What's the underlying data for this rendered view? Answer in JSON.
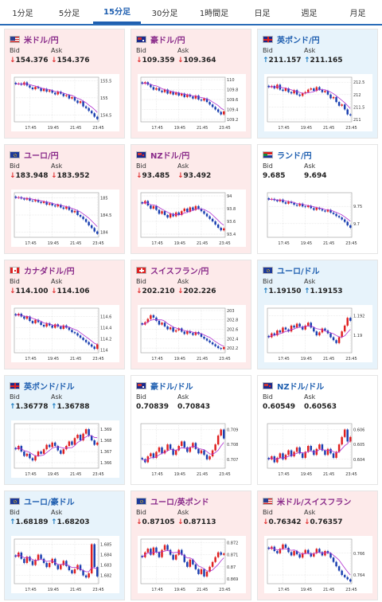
{
  "tabs": [
    {
      "label": "1分足",
      "active": false
    },
    {
      "label": "5分足",
      "active": false
    },
    {
      "label": "15分足",
      "active": true
    },
    {
      "label": "30分足",
      "active": false
    },
    {
      "label": "1時間足",
      "active": false
    },
    {
      "label": "日足",
      "active": false
    },
    {
      "label": "週足",
      "active": false
    },
    {
      "label": "月足",
      "active": false
    }
  ],
  "labels": {
    "bid": "Bid",
    "ask": "Ask"
  },
  "colors": {
    "down_bg": "#fdeaea",
    "up_bg": "#e7f3fb",
    "down_arrow": "#e03030",
    "up_arrow": "#1a7ac0",
    "candle_up": "#e02020",
    "candle_down": "#1a3fb0",
    "ma": "#b030d0"
  },
  "pairs": [
    {
      "title": "米ドル/円",
      "flag": "us-jp",
      "trend": "down",
      "bid": "154.376",
      "ask": "154.376",
      "bid_dir": "down",
      "ask_dir": "down",
      "chart_data": {
        "type": "candlestick",
        "x_ticks": [
          "17:45",
          "19:45",
          "21:45",
          "23:45"
        ],
        "y_ticks": [
          "155.5",
          "155",
          "154.5"
        ],
        "ylim": [
          154.3,
          155.6
        ],
        "close": [
          155.4,
          155.42,
          155.38,
          155.45,
          155.36,
          155.3,
          155.25,
          155.32,
          155.28,
          155.2,
          155.26,
          155.18,
          155.22,
          155.15,
          155.1,
          155.18,
          155.12,
          155.05,
          155.08,
          154.98,
          155.02,
          154.92,
          154.85,
          154.9,
          154.75,
          154.7,
          154.62,
          154.55,
          154.45,
          154.38
        ]
      }
    },
    {
      "title": "豪ドル/円",
      "flag": "au-jp",
      "trend": "down",
      "bid": "109.359",
      "ask": "109.364",
      "bid_dir": "down",
      "ask_dir": "down",
      "chart_data": {
        "type": "candlestick",
        "x_ticks": [
          "17:45",
          "19:45",
          "21:45",
          "23:45"
        ],
        "y_ticks": [
          "110",
          "109.8",
          "109.6",
          "109.4",
          "109.2"
        ],
        "ylim": [
          109.15,
          110.05
        ],
        "close": [
          109.92,
          109.95,
          109.9,
          109.85,
          109.8,
          109.83,
          109.78,
          109.75,
          109.8,
          109.72,
          109.76,
          109.7,
          109.74,
          109.68,
          109.72,
          109.65,
          109.7,
          109.66,
          109.62,
          109.68,
          109.6,
          109.58,
          109.62,
          109.55,
          109.5,
          109.45,
          109.4,
          109.35,
          109.3,
          109.36
        ]
      }
    },
    {
      "title": "英ポンド/円",
      "flag": "gb-jp",
      "trend": "up",
      "bid": "211.157",
      "ask": "211.165",
      "bid_dir": "up",
      "ask_dir": "up",
      "chart_data": {
        "type": "candlestick",
        "x_ticks": [
          "17:45",
          "19:45",
          "21:45",
          "23:45"
        ],
        "y_ticks": [
          "212.5",
          "212",
          "211.5",
          "211"
        ],
        "ylim": [
          210.9,
          212.7
        ],
        "close": [
          212.3,
          212.35,
          212.25,
          212.4,
          212.2,
          212.15,
          212.25,
          212.1,
          212.05,
          212.18,
          212.0,
          211.95,
          212.05,
          212.1,
          212.2,
          212.25,
          212.15,
          212.3,
          212.2,
          212.1,
          212.15,
          212.0,
          211.85,
          211.9,
          211.7,
          211.55,
          211.6,
          211.4,
          211.2,
          211.16
        ]
      }
    },
    {
      "title": "ユーロ/円",
      "flag": "eu-jp",
      "trend": "down",
      "bid": "183.948",
      "ask": "183.952",
      "bid_dir": "down",
      "ask_dir": "down",
      "chart_data": {
        "type": "candlestick",
        "x_ticks": [
          "17:45",
          "19:45",
          "21:45",
          "23:45"
        ],
        "y_ticks": [
          "185",
          "184.5",
          "184"
        ],
        "ylim": [
          183.85,
          185.15
        ],
        "close": [
          185.0,
          185.02,
          184.98,
          184.95,
          184.99,
          184.92,
          184.9,
          184.94,
          184.88,
          184.85,
          184.89,
          184.8,
          184.84,
          184.78,
          184.75,
          184.8,
          184.72,
          184.68,
          184.74,
          184.65,
          184.58,
          184.62,
          184.5,
          184.45,
          184.38,
          184.3,
          184.2,
          184.12,
          184.02,
          183.95
        ]
      }
    },
    {
      "title": "NZドル/円",
      "flag": "nz-jp",
      "trend": "down",
      "bid": "93.485",
      "ask": "93.492",
      "bid_dir": "down",
      "ask_dir": "down",
      "chart_data": {
        "type": "candlestick",
        "x_ticks": [
          "17:45",
          "19:45",
          "21:45",
          "23:45"
        ],
        "y_ticks": [
          "94",
          "93.8",
          "93.6",
          "93.4"
        ],
        "ylim": [
          93.35,
          94.05
        ],
        "close": [
          93.88,
          93.92,
          93.85,
          93.8,
          93.84,
          93.78,
          93.72,
          93.76,
          93.7,
          93.66,
          93.72,
          93.68,
          93.74,
          93.7,
          93.76,
          93.8,
          93.75,
          93.82,
          93.78,
          93.84,
          93.8,
          93.76,
          93.72,
          93.68,
          93.64,
          93.6,
          93.55,
          93.5,
          93.46,
          93.49
        ]
      }
    },
    {
      "title": "ランド/円",
      "flag": "za-jp",
      "trend": "flat",
      "bid": "9.685",
      "ask": "9.694",
      "bid_dir": "none",
      "ask_dir": "none",
      "chart_data": {
        "type": "candlestick",
        "x_ticks": [
          "17:45",
          "19:45",
          "21:45",
          "23:45"
        ],
        "y_ticks": [
          "9.75",
          "9.7"
        ],
        "ylim": [
          9.66,
          9.79
        ],
        "close": [
          9.77,
          9.772,
          9.768,
          9.765,
          9.77,
          9.762,
          9.758,
          9.764,
          9.76,
          9.755,
          9.752,
          9.758,
          9.75,
          9.748,
          9.752,
          9.745,
          9.74,
          9.746,
          9.742,
          9.738,
          9.735,
          9.74,
          9.732,
          9.728,
          9.722,
          9.718,
          9.712,
          9.705,
          9.695,
          9.688
        ]
      }
    },
    {
      "title": "カナダドル/円",
      "flag": "ca-jp",
      "trend": "down",
      "bid": "114.100",
      "ask": "114.106",
      "bid_dir": "down",
      "ask_dir": "down",
      "chart_data": {
        "type": "candlestick",
        "x_ticks": [
          "17:45",
          "19:45",
          "21:45",
          "23:45"
        ],
        "y_ticks": [
          "114.6",
          "114.4",
          "114.2",
          "114"
        ],
        "ylim": [
          113.95,
          114.75
        ],
        "close": [
          114.62,
          114.65,
          114.6,
          114.56,
          114.6,
          114.52,
          114.48,
          114.54,
          114.5,
          114.45,
          114.42,
          114.48,
          114.44,
          114.4,
          114.46,
          114.42,
          114.38,
          114.44,
          114.4,
          114.36,
          114.32,
          114.3,
          114.26,
          114.22,
          114.18,
          114.14,
          114.1,
          114.06,
          114.02,
          114.1
        ]
      }
    },
    {
      "title": "スイスフラン/円",
      "flag": "ch-jp",
      "trend": "down",
      "bid": "202.210",
      "ask": "202.226",
      "bid_dir": "down",
      "ask_dir": "down",
      "chart_data": {
        "type": "candlestick",
        "x_ticks": [
          "17:45",
          "19:45",
          "21:45",
          "23:45"
        ],
        "y_ticks": [
          "203",
          "202.8",
          "202.6",
          "202.4",
          "202.2"
        ],
        "ylim": [
          202.1,
          203.05
        ],
        "close": [
          202.7,
          202.75,
          202.82,
          202.9,
          202.85,
          202.78,
          202.7,
          202.74,
          202.66,
          202.6,
          202.64,
          202.55,
          202.58,
          202.62,
          202.55,
          202.5,
          202.56,
          202.52,
          202.48,
          202.54,
          202.5,
          202.44,
          202.4,
          202.36,
          202.32,
          202.28,
          202.24,
          202.2,
          202.18,
          202.22
        ]
      }
    },
    {
      "title": "ユーロ/ドル",
      "flag": "eu-us",
      "trend": "up",
      "bid": "1.19150",
      "ask": "1.19153",
      "bid_dir": "up",
      "ask_dir": "up",
      "chart_data": {
        "type": "candlestick",
        "x_ticks": [
          "17:45",
          "19:45",
          "21:45",
          "23:45"
        ],
        "y_ticks": [
          "1.192",
          "1.19"
        ],
        "ylim": [
          1.1882,
          1.1928
        ],
        "close": [
          1.1898,
          1.1902,
          1.19,
          1.1905,
          1.1903,
          1.1908,
          1.1906,
          1.1904,
          1.191,
          1.1908,
          1.1912,
          1.1909,
          1.1906,
          1.191,
          1.1913,
          1.1908,
          1.1904,
          1.19,
          1.1903,
          1.1907,
          1.1905,
          1.1902,
          1.1898,
          1.1895,
          1.1892,
          1.1898,
          1.1904,
          1.191,
          1.1918,
          1.1915
        ]
      }
    },
    {
      "title": "英ポンド/ドル",
      "flag": "gb-us",
      "trend": "up",
      "bid": "1.36778",
      "ask": "1.36788",
      "bid_dir": "up",
      "ask_dir": "up",
      "chart_data": {
        "type": "candlestick",
        "x_ticks": [
          "17:45",
          "19:45",
          "21:45",
          "23:45"
        ],
        "y_ticks": [
          "1.369",
          "1.368",
          "1.367",
          "1.366"
        ],
        "ylim": [
          1.3655,
          1.3695
        ],
        "close": [
          1.3672,
          1.3675,
          1.367,
          1.3666,
          1.3668,
          1.3664,
          1.3662,
          1.3666,
          1.367,
          1.3668,
          1.3672,
          1.3676,
          1.3674,
          1.3678,
          1.3675,
          1.3671,
          1.3668,
          1.3672,
          1.3675,
          1.3679,
          1.3676,
          1.3682,
          1.3685,
          1.368,
          1.3686,
          1.369,
          1.3684,
          1.368,
          1.3676,
          1.3678
        ]
      }
    },
    {
      "title": "豪ドル/ドル",
      "flag": "au-us",
      "trend": "flat",
      "bid": "0.70839",
      "ask": "0.70843",
      "bid_dir": "none",
      "ask_dir": "none",
      "chart_data": {
        "type": "candlestick",
        "x_ticks": [
          "17:45",
          "19:45",
          "21:45",
          "23:45"
        ],
        "y_ticks": [
          "0.709",
          "0.708",
          "0.707"
        ],
        "ylim": [
          0.7064,
          0.7094
        ],
        "close": [
          0.707,
          0.7068,
          0.7072,
          0.7074,
          0.7071,
          0.7075,
          0.7078,
          0.7074,
          0.7076,
          0.708,
          0.7077,
          0.7073,
          0.7076,
          0.7079,
          0.7082,
          0.7078,
          0.7075,
          0.7078,
          0.7081,
          0.7077,
          0.7074,
          0.7076,
          0.7073,
          0.707,
          0.7072,
          0.7076,
          0.708,
          0.7086,
          0.709,
          0.7084
        ]
      }
    },
    {
      "title": "NZドル/ドル",
      "flag": "nz-us",
      "trend": "flat",
      "bid": "0.60549",
      "ask": "0.60563",
      "bid_dir": "none",
      "ask_dir": "none",
      "chart_data": {
        "type": "candlestick",
        "x_ticks": [
          "17:45",
          "19:45",
          "21:45",
          "23:45"
        ],
        "y_ticks": [
          "0.606",
          "0.605",
          "0.604"
        ],
        "ylim": [
          0.6034,
          0.6064
        ],
        "close": [
          0.604,
          0.6042,
          0.6038,
          0.6041,
          0.6044,
          0.604,
          0.6043,
          0.6046,
          0.6042,
          0.6045,
          0.6048,
          0.6044,
          0.6041,
          0.6045,
          0.6049,
          0.6046,
          0.6043,
          0.6047,
          0.605,
          0.6046,
          0.6043,
          0.6047,
          0.6044,
          0.6041,
          0.6045,
          0.605,
          0.6055,
          0.606,
          0.6052,
          0.6055
        ]
      }
    },
    {
      "title": "ユーロ/豪ドル",
      "flag": "eu-au",
      "trend": "up",
      "bid": "1.68189",
      "ask": "1.68203",
      "bid_dir": "up",
      "ask_dir": "up",
      "chart_data": {
        "type": "candlestick",
        "x_ticks": [
          "17:45",
          "19:45",
          "21:45",
          "23:45"
        ],
        "y_ticks": [
          "1.685",
          "1.684",
          "1.683",
          "1.682"
        ],
        "ylim": [
          1.6812,
          1.6855
        ],
        "close": [
          1.6838,
          1.6842,
          1.6836,
          1.6832,
          1.6838,
          1.6834,
          1.683,
          1.6835,
          1.684,
          1.6836,
          1.6832,
          1.6828,
          1.6832,
          1.6836,
          1.683,
          1.6826,
          1.683,
          1.6834,
          1.6829,
          1.6825,
          1.6822,
          1.6826,
          1.683,
          1.6825,
          1.682,
          1.6818,
          1.6822,
          1.685,
          1.6828,
          1.6819
        ]
      }
    },
    {
      "title": "ユーロ/英ポンド",
      "flag": "eu-gb",
      "trend": "down",
      "bid": "0.87105",
      "ask": "0.87113",
      "bid_dir": "down",
      "ask_dir": "down",
      "chart_data": {
        "type": "candlestick",
        "x_ticks": [
          "17:45",
          "19:45",
          "21:45",
          "23:45"
        ],
        "y_ticks": [
          "0.872",
          "0.871",
          "0.87",
          "0.869"
        ],
        "ylim": [
          0.8686,
          0.8723
        ],
        "close": [
          0.8708,
          0.8712,
          0.8715,
          0.871,
          0.8716,
          0.8712,
          0.8708,
          0.8714,
          0.8718,
          0.8714,
          0.871,
          0.8706,
          0.871,
          0.8714,
          0.871,
          0.8704,
          0.87,
          0.8706,
          0.8702,
          0.8698,
          0.8694,
          0.8698,
          0.8692,
          0.8696,
          0.87,
          0.8704,
          0.8708,
          0.8712,
          0.871,
          0.8711
        ]
      }
    },
    {
      "title": "米ドル/スイスフラン",
      "flag": "us-ch",
      "trend": "down",
      "bid": "0.76342",
      "ask": "0.76357",
      "bid_dir": "down",
      "ask_dir": "down",
      "chart_data": {
        "type": "candlestick",
        "x_ticks": [
          "17:45",
          "19:45",
          "21:45",
          "23:45"
        ],
        "y_ticks": [
          "0.766",
          "0.764"
        ],
        "ylim": [
          0.7632,
          0.7673
        ],
        "close": [
          0.7664,
          0.7666,
          0.7662,
          0.766,
          0.7664,
          0.7668,
          0.7665,
          0.7661,
          0.7658,
          0.7662,
          0.7659,
          0.7656,
          0.766,
          0.7663,
          0.766,
          0.7657,
          0.766,
          0.7664,
          0.7661,
          0.7658,
          0.7662,
          0.766,
          0.7656,
          0.7652,
          0.7648,
          0.7644,
          0.764,
          0.7638,
          0.7636,
          0.7634
        ]
      }
    }
  ]
}
